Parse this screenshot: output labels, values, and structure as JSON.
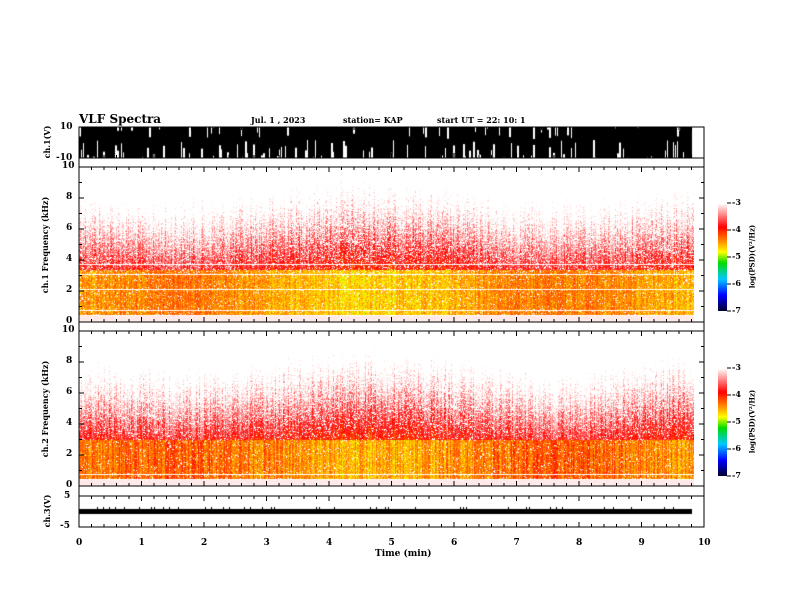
{
  "header": {
    "title": "VLF Spectra",
    "date": "Jul. 1 , 2023",
    "station": "station= KAP",
    "start": "start UT = 22: 10: 1"
  },
  "chart_data": [
    {
      "type": "line",
      "name": "ch1 waveform",
      "ylabel": "ch.1(V)",
      "ylim": [
        -10,
        10
      ],
      "yticks": [
        "10",
        "-10"
      ],
      "xlim": [
        0,
        10
      ]
    },
    {
      "type": "heatmap",
      "name": "ch1 spectrogram",
      "ylabel": "ch.1 Frequency (kHz)",
      "ylim": [
        0,
        10
      ],
      "yticks": [
        "0",
        "2",
        "4",
        "6",
        "8",
        "10"
      ],
      "xlim": [
        0,
        10
      ],
      "colorbar": {
        "label": "log(PSD)(V²/Hz)",
        "range": [
          -7,
          -3
        ],
        "ticks": [
          "-3",
          "-4",
          "-5",
          "-6",
          "-7"
        ]
      }
    },
    {
      "type": "heatmap",
      "name": "ch2 spectrogram",
      "ylabel": "ch.2 Frequency (kHz)",
      "ylim": [
        0,
        10
      ],
      "yticks": [
        "0",
        "2",
        "4",
        "6",
        "8",
        "10"
      ],
      "xlim": [
        0,
        10
      ],
      "colorbar": {
        "label": "log(PSD)(V²/Hz)",
        "range": [
          -7,
          -3
        ],
        "ticks": [
          "-3",
          "-4",
          "-5",
          "-6",
          "-7"
        ]
      }
    },
    {
      "type": "line",
      "name": "ch3 waveform",
      "ylabel": "ch.3(V)",
      "ylim": [
        -5,
        5
      ],
      "yticks": [
        "5",
        "-5"
      ],
      "xlim": [
        0,
        10
      ]
    }
  ],
  "xaxis": {
    "label": "Time (min)",
    "ticks": [
      "0",
      "1",
      "2",
      "3",
      "4",
      "5",
      "6",
      "7",
      "8",
      "9",
      "10"
    ]
  },
  "colors": {
    "waveform": "#000000"
  }
}
